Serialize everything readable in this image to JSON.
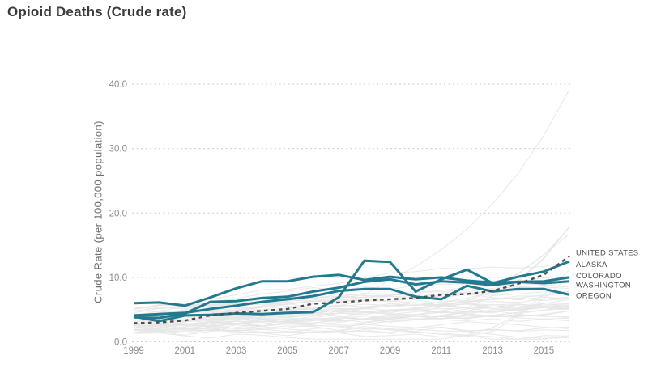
{
  "page": {
    "title": "Opioid Deaths (Crude rate)"
  },
  "chart_data": {
    "type": "line",
    "title": "Opioid Deaths (Crude rate)",
    "xlabel": "",
    "ylabel": "Crude Rate (per 100,000 population)",
    "x": [
      1999,
      2000,
      2001,
      2002,
      2003,
      2004,
      2005,
      2006,
      2007,
      2008,
      2009,
      2010,
      2011,
      2012,
      2013,
      2014,
      2015,
      2016
    ],
    "x_tick_labels": [
      "1999",
      "2001",
      "2003",
      "2005",
      "2007",
      "2009",
      "2011",
      "2013",
      "2015"
    ],
    "y_ticks": [
      0,
      10,
      20,
      30,
      40
    ],
    "y_tick_labels": [
      "0.0",
      "10.0",
      "20.0",
      "30.0",
      "40.0"
    ],
    "ylim": [
      0,
      40
    ],
    "xlim": [
      1999,
      2016
    ],
    "grid": "horizontal-dashed",
    "legend_position": "right-end-labels",
    "series": [
      {
        "name": "UNITED STATES",
        "style": "dashed",
        "color": "#4d4d4d",
        "values": [
          2.9,
          3.0,
          3.3,
          4.1,
          4.5,
          4.8,
          5.1,
          5.9,
          6.1,
          6.4,
          6.6,
          6.8,
          7.3,
          7.4,
          7.9,
          9.0,
          10.4,
          13.3
        ]
      },
      {
        "name": "ALASKA",
        "style": "solid",
        "color": "#23798e",
        "values": [
          3.9,
          3.2,
          4.1,
          4.2,
          4.4,
          4.3,
          4.5,
          4.6,
          6.9,
          12.6,
          12.4,
          7.8,
          9.7,
          11.2,
          9.1,
          10.1,
          10.9,
          12.5
        ]
      },
      {
        "name": "COLORADO",
        "style": "solid",
        "color": "#23798e",
        "values": [
          3.8,
          3.7,
          4.4,
          6.2,
          6.3,
          6.8,
          7.0,
          7.8,
          8.4,
          9.3,
          9.7,
          8.9,
          9.4,
          9.2,
          8.8,
          9.3,
          9.4,
          10.0
        ]
      },
      {
        "name": "WASHINGTON",
        "style": "solid",
        "color": "#23798e",
        "values": [
          6.0,
          6.1,
          5.6,
          6.9,
          8.3,
          9.4,
          9.4,
          10.1,
          10.4,
          9.6,
          10.1,
          9.7,
          10.0,
          9.5,
          9.2,
          9.3,
          9.1,
          9.4
        ]
      },
      {
        "name": "OREGON",
        "style": "solid",
        "color": "#23798e",
        "values": [
          4.1,
          4.3,
          4.5,
          5.1,
          5.6,
          6.2,
          6.6,
          7.1,
          7.9,
          8.2,
          8.2,
          7.0,
          6.6,
          8.7,
          7.8,
          8.2,
          8.2,
          7.3
        ]
      }
    ],
    "background_series": {
      "description": "all other states, de-emphasized faint gray lines",
      "count": 45,
      "color": "#e6e6e6",
      "tallest_end_value_2016": 39.2
    }
  },
  "colors": {
    "background": "#ffffff",
    "title_text": "#3b3b3b",
    "axis_text": "#8c8c8c",
    "grid_line": "#cbcbcb",
    "highlight_teal": "#23798e",
    "dashed_reference": "#4d4d4d",
    "faint_state_line": "#e6e6e6"
  }
}
